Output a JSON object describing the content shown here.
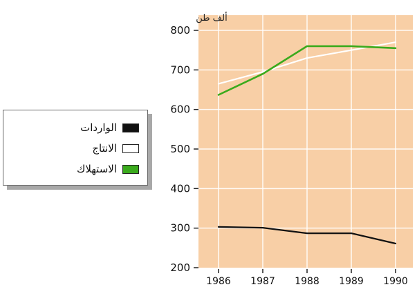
{
  "chart_data": {
    "type": "line",
    "ylabel": "ألف طن",
    "xlabel": "",
    "x": [
      1986,
      1987,
      1988,
      1989,
      1990
    ],
    "x_tick_labels": [
      "1986",
      "1987",
      "1988",
      "1989",
      "1990"
    ],
    "y_ticks": [
      200,
      300,
      400,
      500,
      600,
      700,
      800
    ],
    "ylim": [
      200,
      825
    ],
    "grid": true,
    "plot_background": "#f8cfa6",
    "series": [
      {
        "name": "الواردات",
        "color": "#111111",
        "values": [
          303,
          301,
          287,
          287,
          261
        ]
      },
      {
        "name": "الانتاج",
        "color": "#ffffff",
        "values": [
          665,
          695,
          730,
          750,
          770
        ]
      },
      {
        "name": "الاستهلاك",
        "color": "#3aaa1c",
        "values": [
          637,
          690,
          760,
          760,
          755
        ]
      }
    ],
    "legend": {
      "placement": "left",
      "items": [
        {
          "label": "الواردات",
          "swatch": "#111111"
        },
        {
          "label": "الانتاج",
          "swatch": "#ffffff"
        },
        {
          "label": "الاستهلاك",
          "swatch": "#3aaa1c"
        }
      ]
    }
  }
}
